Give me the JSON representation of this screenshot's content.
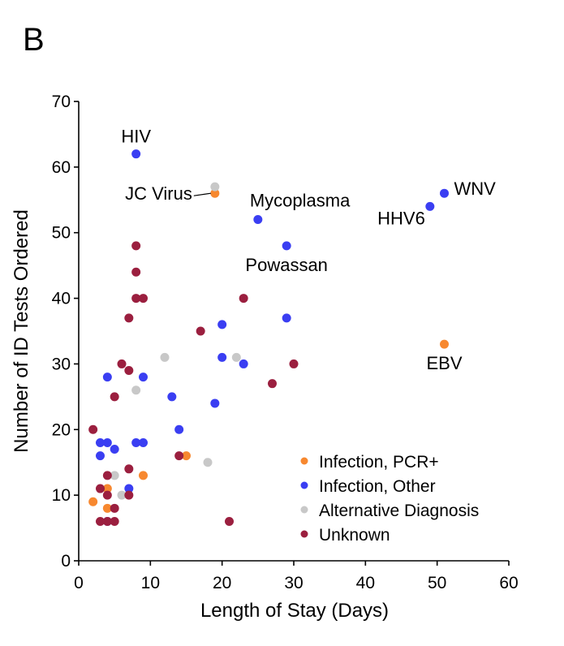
{
  "panel_letter": "B",
  "colors": {
    "pcr": "#f7882f",
    "other": "#3a3ef2",
    "alt": "#c8c8c8",
    "unknown": "#9b1f3f",
    "axis": "#000000"
  },
  "chart_data": {
    "type": "scatter",
    "xlabel": "Length of Stay (Days)",
    "ylabel": "Number of ID Tests Ordered",
    "xlim": [
      0,
      60
    ],
    "ylim": [
      0,
      70
    ],
    "xticks": [
      0,
      10,
      20,
      30,
      40,
      50,
      60
    ],
    "yticks": [
      0,
      10,
      20,
      30,
      40,
      50,
      60,
      70
    ],
    "grid": false,
    "legend_position": "bottom-right",
    "legend": [
      {
        "key": "pcr",
        "label": "Infection, PCR+"
      },
      {
        "key": "other",
        "label": "Infection, Other"
      },
      {
        "key": "alt",
        "label": "Alternative Diagnosis"
      },
      {
        "key": "unknown",
        "label": "Unknown"
      }
    ],
    "series": [
      {
        "key": "pcr",
        "name": "Infection, PCR+",
        "points": [
          [
            2,
            9
          ],
          [
            4,
            11
          ],
          [
            4,
            8
          ],
          [
            9,
            13
          ],
          [
            15,
            16
          ],
          [
            19,
            56
          ],
          [
            51,
            33
          ]
        ]
      },
      {
        "key": "other",
        "name": "Infection, Other",
        "points": [
          [
            3,
            18
          ],
          [
            3,
            16
          ],
          [
            4,
            28
          ],
          [
            4,
            18
          ],
          [
            4,
            6
          ],
          [
            5,
            17
          ],
          [
            7,
            11
          ],
          [
            8,
            62
          ],
          [
            8,
            18
          ],
          [
            9,
            28
          ],
          [
            9,
            18
          ],
          [
            13,
            25
          ],
          [
            14,
            20
          ],
          [
            19,
            24
          ],
          [
            20,
            36
          ],
          [
            20,
            31
          ],
          [
            23,
            30
          ],
          [
            25,
            52
          ],
          [
            29,
            48
          ],
          [
            29,
            37
          ],
          [
            49,
            54
          ],
          [
            51,
            56
          ]
        ]
      },
      {
        "key": "alt",
        "name": "Alternative Diagnosis",
        "points": [
          [
            5,
            13
          ],
          [
            6,
            10
          ],
          [
            8,
            26
          ],
          [
            12,
            31
          ],
          [
            18,
            15
          ],
          [
            19,
            57
          ],
          [
            22,
            31
          ]
        ]
      },
      {
        "key": "unknown",
        "name": "Unknown",
        "points": [
          [
            2,
            20
          ],
          [
            3,
            11
          ],
          [
            3,
            6
          ],
          [
            4,
            13
          ],
          [
            4,
            10
          ],
          [
            4,
            6
          ],
          [
            5,
            25
          ],
          [
            5,
            8
          ],
          [
            5,
            6
          ],
          [
            6,
            30
          ],
          [
            7,
            37
          ],
          [
            7,
            29
          ],
          [
            7,
            14
          ],
          [
            7,
            10
          ],
          [
            8,
            48
          ],
          [
            8,
            44
          ],
          [
            8,
            40
          ],
          [
            9,
            40
          ],
          [
            14,
            16
          ],
          [
            17,
            35
          ],
          [
            21,
            6
          ],
          [
            23,
            40
          ],
          [
            27,
            27
          ],
          [
            30,
            30
          ]
        ]
      }
    ],
    "annotations": [
      {
        "text": "HIV",
        "x": 8,
        "y": 62,
        "anchor": "middle",
        "pos": "above"
      },
      {
        "text": "JC Virus",
        "x": 19,
        "y": 56,
        "anchor": "end",
        "pos": "left",
        "leader": true
      },
      {
        "text": "Mycoplasma",
        "x": 25,
        "y": 52,
        "anchor": "start",
        "pos": "above-left"
      },
      {
        "text": "Powassan",
        "x": 29,
        "y": 48,
        "anchor": "middle",
        "pos": "below"
      },
      {
        "text": "HHV6",
        "x": 49,
        "y": 54,
        "anchor": "end",
        "pos": "below-left"
      },
      {
        "text": "WNV",
        "x": 51,
        "y": 56,
        "anchor": "start",
        "pos": "right"
      },
      {
        "text": "EBV",
        "x": 51,
        "y": 33,
        "anchor": "middle",
        "pos": "below"
      }
    ]
  }
}
